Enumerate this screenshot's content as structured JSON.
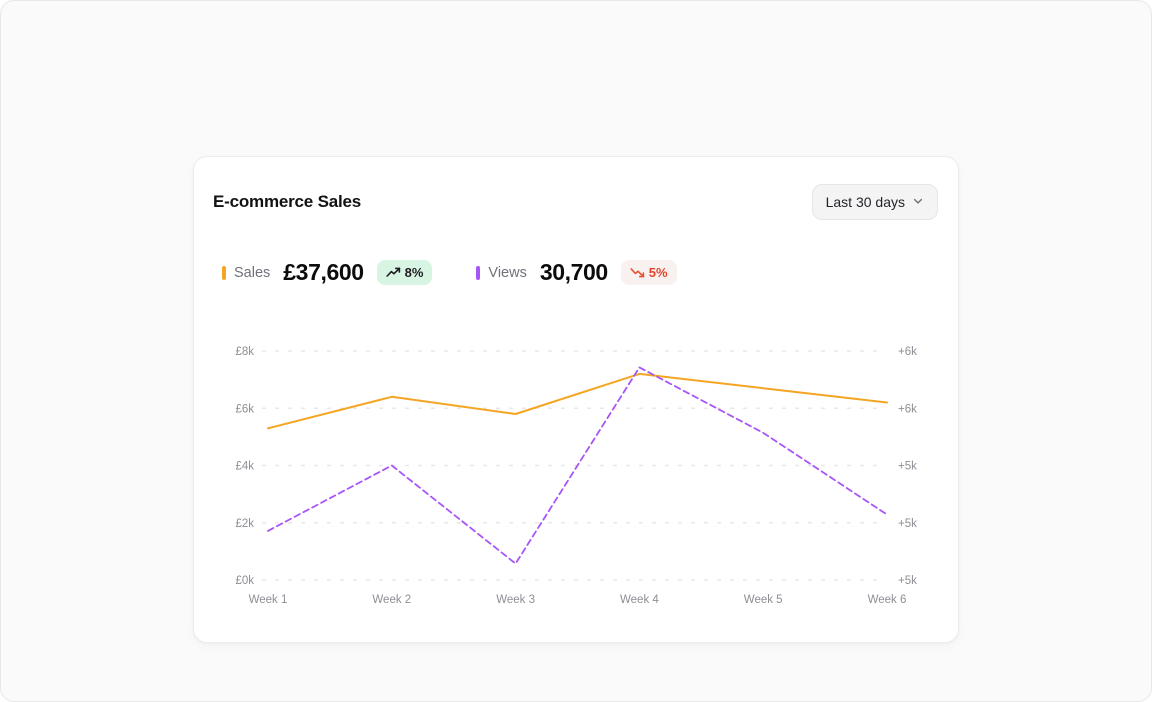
{
  "page": {
    "background": "#fafafa"
  },
  "card": {
    "title": "E-commerce Sales",
    "range_selector": {
      "label": "Last 30 days",
      "icon": "chevron-down"
    }
  },
  "metrics": [
    {
      "id": "sales",
      "label": "Sales",
      "value": "£37,600",
      "accent": "#f5a524",
      "delta": {
        "text": "8%",
        "direction": "up",
        "bg": "#d8f5e3",
        "color": "#1c1c21",
        "icon_color": "#1c1c21",
        "icon": "trending-up"
      }
    },
    {
      "id": "views",
      "label": "Views",
      "value": "30,700",
      "accent": "#a855f7",
      "delta": {
        "text": "5%",
        "direction": "down",
        "bg": "#f9f1f0",
        "color": "#e0452c",
        "icon_color": "#e5502d",
        "icon": "trending-down"
      }
    }
  ],
  "chart_data": {
    "type": "line",
    "title": "E-commerce Sales",
    "categories": [
      "Week 1",
      "Week 2",
      "Week 3",
      "Week 4",
      "Week 5",
      "Week 6"
    ],
    "series": [
      {
        "name": "Sales",
        "axis": "left",
        "color": "#f5a524",
        "line_style": "solid",
        "values": [
          5300,
          6400,
          5800,
          7200,
          6700,
          6200
        ],
        "total": 37600,
        "unit": "GBP"
      },
      {
        "name": "Views",
        "axis": "right",
        "color": "#a855f7",
        "line_style": "dashed",
        "values": [
          4800,
          5200,
          4600,
          5800,
          5400,
          4900
        ],
        "total": 30700,
        "unit": "views"
      }
    ],
    "left_axis": {
      "range": [
        0,
        8000
      ],
      "labels_top_to_bottom": [
        "£8k",
        "£6k",
        "£4k",
        "£2k",
        "£0k"
      ]
    },
    "right_axis": {
      "range": [
        4500,
        5900
      ],
      "labels_top_to_bottom": [
        "+6k",
        "+6k",
        "+5k",
        "+5k",
        "+5k"
      ]
    },
    "grid": "dashed-horizontal",
    "legend_position": "none",
    "grid_color": "#e8e8ea"
  }
}
